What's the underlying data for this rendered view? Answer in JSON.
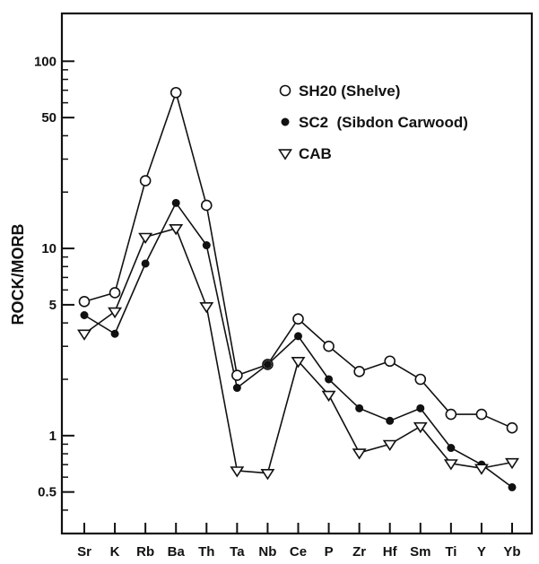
{
  "chart_data": {
    "type": "line",
    "title": "",
    "xlabel": "",
    "ylabel": "ROCK/MORB",
    "yscale": "log",
    "ylim": [
      0.3,
      180
    ],
    "yticks": [
      0.5,
      1,
      5,
      10,
      50,
      100
    ],
    "ytick_labels": [
      "0.5",
      "1",
      "5",
      "10",
      "50",
      "100"
    ],
    "grid": false,
    "legend_position": "top-right",
    "categories": [
      "Sr",
      "K",
      "Rb",
      "Ba",
      "Th",
      "Ta",
      "Nb",
      "Ce",
      "P",
      "Zr",
      "Hf",
      "Sm",
      "Ti",
      "Y",
      "Yb"
    ],
    "series": [
      {
        "name": "SH20 (Shelve)",
        "marker": "open-circle",
        "values": [
          5.2,
          5.8,
          23,
          68,
          17,
          2.1,
          2.4,
          4.2,
          3.0,
          2.2,
          2.5,
          2.0,
          1.3,
          1.3,
          1.1
        ]
      },
      {
        "name": "SC2  (Sibdon Carwood)",
        "marker": "filled-circle",
        "values": [
          4.4,
          3.5,
          8.3,
          17.5,
          10.4,
          1.8,
          2.4,
          3.4,
          2.0,
          1.4,
          1.2,
          1.4,
          0.86,
          0.7,
          0.53
        ]
      },
      {
        "name": "CAB",
        "marker": "open-triangle-down",
        "values": [
          3.5,
          4.6,
          11.5,
          12.8,
          4.9,
          0.65,
          0.63,
          2.5,
          1.65,
          0.81,
          0.9,
          1.12,
          0.71,
          0.67,
          0.72
        ]
      }
    ]
  }
}
